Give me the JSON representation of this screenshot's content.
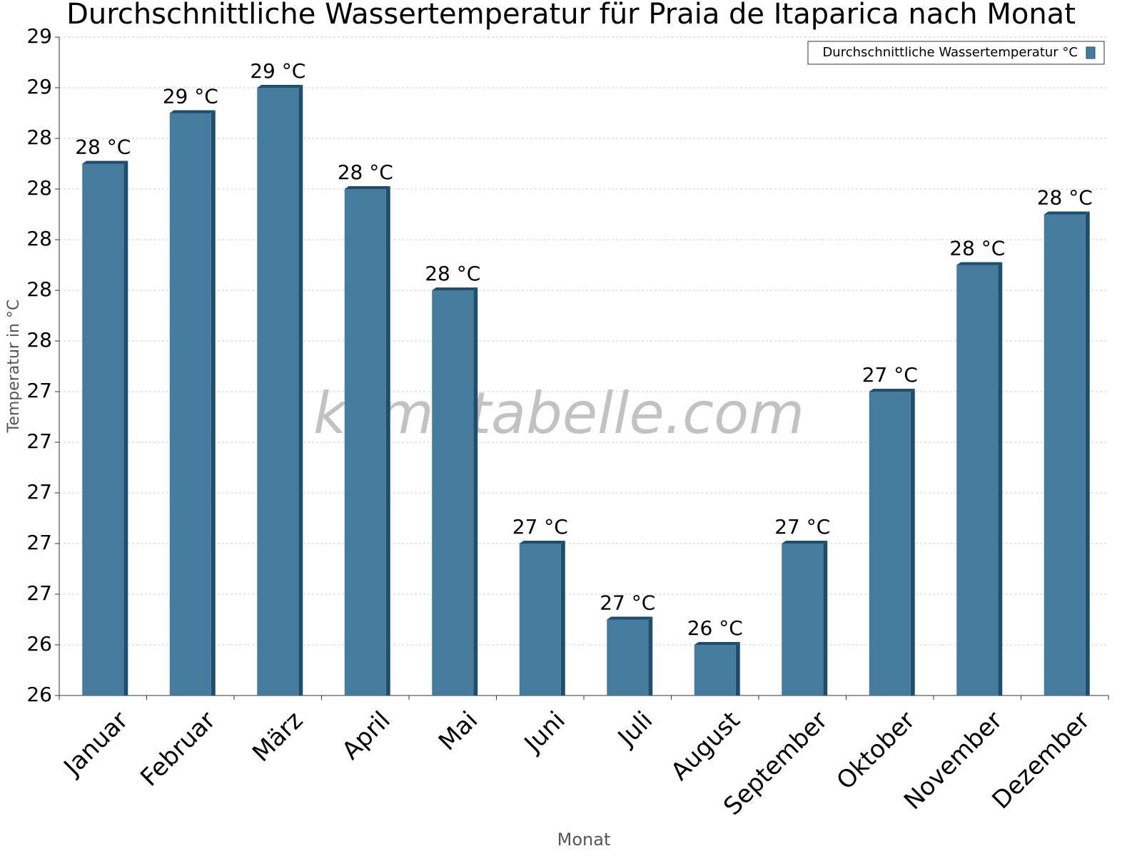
{
  "chart_data": {
    "type": "bar",
    "title": "Durchschnittliche Wassertemperatur für Praia de Itaparica nach Monat",
    "x_label": "Monat",
    "y_label": "Temperatur in °C",
    "watermark": "klimatabelle.com",
    "categories": [
      "Januar",
      "Februar",
      "März",
      "April",
      "Mai",
      "Juni",
      "Juli",
      "August",
      "September",
      "Oktober",
      "November",
      "Dezember"
    ],
    "series": [
      {
        "name": "Durchschnittliche Wassertemperatur °C",
        "color": "#457b9d",
        "values": [
          28.3,
          28.5,
          28.6,
          28.2,
          27.8,
          26.8,
          26.5,
          26.4,
          26.8,
          27.4,
          27.9,
          28.1
        ],
        "value_labels": [
          "28 °C",
          "29 °C",
          "29 °C",
          "28 °C",
          "28 °C",
          "27 °C",
          "27 °C",
          "26 °C",
          "27 °C",
          "27 °C",
          "28 °C",
          "28 °C"
        ]
      }
    ],
    "ylim": [
      26.2,
      28.8
    ],
    "yticks": [
      {
        "value": 26.2,
        "label": "26"
      },
      {
        "value": 26.4,
        "label": "26"
      },
      {
        "value": 26.6,
        "label": "27"
      },
      {
        "value": 26.8,
        "label": "27"
      },
      {
        "value": 27.0,
        "label": "27"
      },
      {
        "value": 27.2,
        "label": "27"
      },
      {
        "value": 27.4,
        "label": "27"
      },
      {
        "value": 27.6,
        "label": "28"
      },
      {
        "value": 27.8,
        "label": "28"
      },
      {
        "value": 28.0,
        "label": "28"
      },
      {
        "value": 28.2,
        "label": "28"
      },
      {
        "value": 28.4,
        "label": "28"
      },
      {
        "value": 28.6,
        "label": "29"
      },
      {
        "value": 28.8,
        "label": "29"
      }
    ],
    "grid": true,
    "legend": "top-right"
  }
}
